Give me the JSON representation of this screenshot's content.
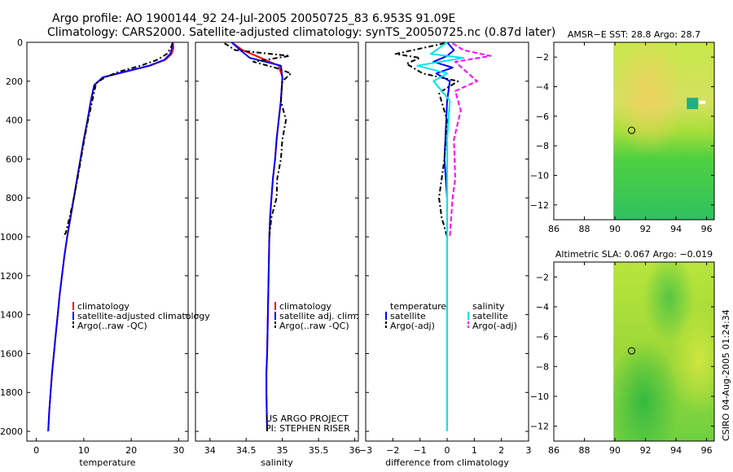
{
  "header": {
    "title_line1": "Argo profile: AO 1900144_92 24-Jul-2005 20050725_83 6.953S 91.09E",
    "title_line2": "Climatology: CARS2000. Satellite-adjusted climatology: synTS_20050725.nc (0.87d later)"
  },
  "footer": {
    "credit": "CSIRO 04-Aug-2005 01:24:34",
    "project_line1": "US ARGO PROJECT",
    "project_line2": "PI: STEPHEN RISER"
  },
  "colors": {
    "climatology": "#ff0000",
    "satellite": "#0000ff",
    "argo": "#000000",
    "salinity_satellite": "#00e5ee",
    "salinity_argo": "#ff00ff"
  },
  "legends": {
    "temperature": [
      "climatology",
      "satellite-adjusted climatology",
      "Argo(..raw -QC)"
    ],
    "salinity": [
      "climatology",
      "satellite adj. clim.",
      "Argo(..raw -QC)"
    ],
    "difference_left": [
      "temperature",
      "satellite",
      "Argo(-adj)"
    ],
    "difference_right": [
      "salinity",
      "satellite",
      "Argo(-adj)"
    ]
  },
  "chart_data": [
    {
      "type": "line",
      "id": "temperature",
      "xlabel": "temperature",
      "ylabel": "",
      "xlim": [
        -2,
        32
      ],
      "ylim": [
        2050,
        0
      ],
      "xticks": [
        0,
        10,
        20,
        30
      ],
      "yticks": [
        0,
        200,
        400,
        600,
        800,
        1000,
        1200,
        1400,
        1600,
        1800,
        2000
      ],
      "series": [
        {
          "name": "climatology",
          "color": "#ff0000",
          "dash": "",
          "x": [
            28.8,
            28.9,
            28.5,
            27.2,
            24.0,
            19.0,
            14.0,
            12.2,
            11.5,
            10.8,
            10.0,
            9.3,
            8.6,
            7.9,
            7.2,
            6.5,
            5.9,
            5.4,
            4.9,
            4.5,
            4.1,
            3.7,
            3.3,
            3.0,
            2.7,
            2.5
          ],
          "y": [
            0,
            30,
            60,
            90,
            120,
            150,
            180,
            220,
            300,
            400,
            500,
            600,
            700,
            800,
            900,
            1000,
            1100,
            1200,
            1300,
            1400,
            1500,
            1600,
            1700,
            1800,
            1900,
            2000
          ]
        },
        {
          "name": "satellite-adjusted climatology",
          "color": "#0000ff",
          "dash": "",
          "x": [
            28.7,
            28.6,
            28.2,
            27.0,
            23.8,
            18.8,
            14.0,
            12.2,
            11.5,
            10.8,
            10.0,
            9.3,
            8.6,
            7.9,
            7.2,
            6.5,
            5.9,
            5.4,
            4.9,
            4.5,
            4.1,
            3.7,
            3.3,
            3.0,
            2.7,
            2.5
          ],
          "y": [
            0,
            30,
            60,
            90,
            120,
            150,
            180,
            220,
            300,
            400,
            500,
            600,
            700,
            800,
            900,
            1000,
            1100,
            1200,
            1300,
            1400,
            1500,
            1600,
            1700,
            1800,
            1900,
            2000
          ]
        },
        {
          "name": "Argo(..raw -QC)",
          "color": "#000000",
          "dash": "6,3,2,3",
          "x": [
            28.7,
            28.3,
            27.5,
            25.5,
            22.0,
            17.5,
            14.5,
            12.6,
            11.8,
            10.9,
            10.1,
            9.4,
            8.7,
            7.9,
            7.0,
            6.2,
            5.6
          ],
          "y": [
            5,
            30,
            60,
            90,
            120,
            150,
            180,
            210,
            300,
            400,
            500,
            600,
            700,
            800,
            900,
            980,
            1000
          ]
        }
      ]
    },
    {
      "type": "line",
      "id": "salinity",
      "xlabel": "salinity",
      "ylabel": "",
      "xlim": [
        33.8,
        36.05
      ],
      "ylim": [
        2050,
        0
      ],
      "xticks": [
        34,
        34.5,
        35,
        35.5,
        36
      ],
      "series": [
        {
          "name": "climatology",
          "color": "#ff0000",
          "dash": "",
          "x": [
            34.3,
            34.45,
            34.7,
            34.95,
            35.0,
            34.98,
            34.95,
            34.92,
            34.9,
            34.87,
            34.85,
            34.83,
            34.82,
            34.81,
            34.8,
            34.79,
            34.78,
            34.78,
            34.79
          ],
          "y": [
            0,
            40,
            80,
            120,
            180,
            300,
            400,
            500,
            600,
            700,
            800,
            900,
            1000,
            1200,
            1400,
            1600,
            1700,
            1800,
            2000
          ]
        },
        {
          "name": "satellite adj. clim.",
          "color": "#0000ff",
          "dash": "",
          "x": [
            34.3,
            34.42,
            34.55,
            34.98,
            35.0,
            34.98,
            34.95,
            34.92,
            34.9,
            34.87,
            34.85,
            34.83,
            34.82,
            34.81,
            34.8,
            34.79,
            34.78,
            34.78,
            34.79
          ],
          "y": [
            0,
            40,
            80,
            120,
            180,
            300,
            400,
            500,
            600,
            700,
            800,
            900,
            1000,
            1200,
            1400,
            1600,
            1700,
            1800,
            2000
          ]
        },
        {
          "name": "Argo(..raw -QC)",
          "color": "#000000",
          "dash": "6,3,2,3",
          "x": [
            34.2,
            34.35,
            35.1,
            34.6,
            34.9,
            35.12,
            35.0,
            34.98,
            35.05,
            35.0,
            34.98,
            34.93,
            34.92,
            34.85,
            34.82
          ],
          "y": [
            5,
            40,
            70,
            100,
            130,
            160,
            200,
            300,
            400,
            500,
            600,
            700,
            800,
            900,
            1000
          ]
        }
      ]
    },
    {
      "type": "line",
      "id": "difference",
      "xlabel": "difference from climatology",
      "ylabel": "",
      "xlim": [
        -3,
        3
      ],
      "ylim": [
        2050,
        0
      ],
      "xticks": [
        -3,
        -2,
        -1,
        0,
        1,
        2,
        3
      ],
      "series": [
        {
          "name": "temperature satellite",
          "color": "#0000ff",
          "dash": "",
          "x": [
            0.0,
            0.25,
            0.0,
            -0.5,
            0.2,
            -0.4,
            0.1,
            0.0,
            -0.1,
            0.0,
            0.0,
            0.0,
            0.0,
            0.0
          ],
          "y": [
            0,
            40,
            70,
            100,
            130,
            160,
            200,
            300,
            600,
            800,
            1000,
            1400,
            1800,
            2000
          ]
        },
        {
          "name": "temperature Argo(-adj)",
          "color": "#000000",
          "dash": "6,3,2,3",
          "x": [
            -0.1,
            -1.9,
            -1.0,
            -1.5,
            -0.9,
            0.4,
            -0.3,
            0.0,
            -0.1,
            -0.3,
            -0.2,
            0.0
          ],
          "y": [
            5,
            60,
            80,
            110,
            160,
            200,
            260,
            400,
            600,
            800,
            900,
            1000
          ]
        },
        {
          "name": "salinity satellite",
          "color": "#00e5ee",
          "dash": "",
          "x": [
            0.0,
            -0.6,
            0.6,
            -1.1,
            0.0,
            -0.5,
            0.1,
            0.0,
            0.0,
            0.0,
            0.0,
            0.0
          ],
          "y": [
            0,
            60,
            80,
            120,
            160,
            200,
            300,
            500,
            800,
            1200,
            1600,
            2000
          ]
        },
        {
          "name": "salinity Argo(-adj)",
          "color": "#ff00ff",
          "dash": "6,3",
          "x": [
            0.2,
            0.6,
            1.6,
            0.3,
            0.7,
            1.1,
            0.3,
            0.5,
            0.25,
            0.3,
            0.2,
            0.15,
            0.1
          ],
          "y": [
            5,
            40,
            70,
            100,
            150,
            200,
            250,
            350,
            500,
            700,
            800,
            900,
            1000
          ]
        }
      ]
    },
    {
      "type": "heatmap",
      "id": "sst_map",
      "title": "AMSR-E SST: 28.8 Argo: 28.7",
      "xlim": [
        86,
        96.5
      ],
      "ylim": [
        -13,
        -1
      ],
      "xticks": [
        86,
        88,
        90,
        92,
        94,
        96
      ],
      "yticks": [
        -2,
        -4,
        -6,
        -8,
        -10,
        -12
      ],
      "data_xrange": [
        89.9,
        96.5
      ],
      "argo_position": {
        "lon": 91.09,
        "lat": -6.953
      }
    },
    {
      "type": "heatmap",
      "id": "sla_map",
      "title": "Altimetric SLA: 0.067 Argo: -0.019",
      "xlim": [
        86,
        96.5
      ],
      "ylim": [
        -13,
        -1
      ],
      "xticks": [
        86,
        88,
        90,
        92,
        94,
        96
      ],
      "yticks": [
        -2,
        -4,
        -6,
        -8,
        -10,
        -12
      ],
      "data_xrange": [
        89.9,
        96.5
      ],
      "argo_position": {
        "lon": 91.09,
        "lat": -6.953
      }
    }
  ]
}
